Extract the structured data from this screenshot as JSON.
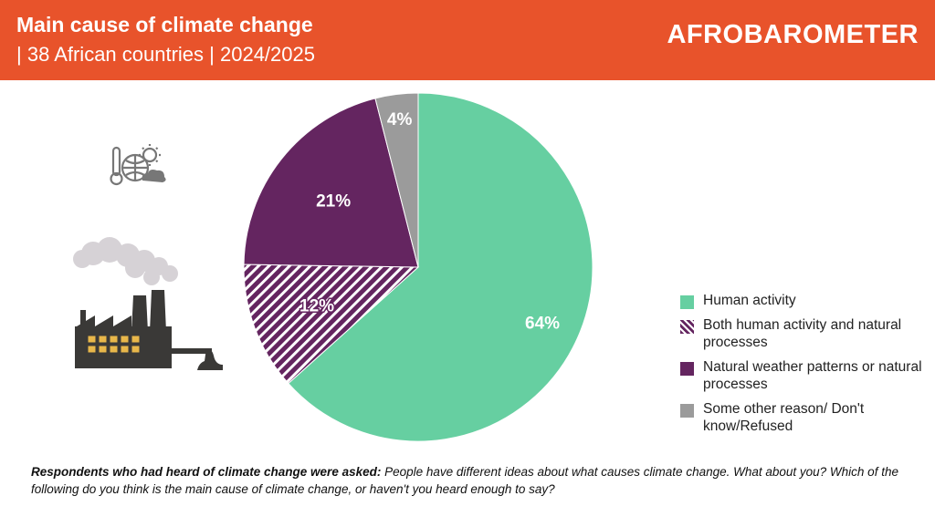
{
  "header": {
    "title": "Main cause of climate change",
    "subtitle": "| 38 African countries | 2024/2025",
    "brand": "AFROBAROMETER",
    "background": "#e8532b"
  },
  "chart_data": {
    "type": "pie",
    "title": "Main cause of climate change",
    "subtitle": "38 African countries | 2024/2025",
    "slices": [
      {
        "label": "Human activity",
        "value": 64,
        "display": "64%",
        "color": "#66cfa1",
        "pattern": "solid"
      },
      {
        "label": "Both human activity and natural processes",
        "value": 12,
        "display": "12%",
        "color": "#642560",
        "pattern": "hatched"
      },
      {
        "label": "Natural weather patterns or natural processes",
        "value": 21,
        "display": "21%",
        "color": "#642560",
        "pattern": "solid"
      },
      {
        "label": "Some other reason/ Don't know/Refused",
        "value": 4,
        "display": "4%",
        "color": "#9b9b9b",
        "pattern": "solid"
      }
    ],
    "start_angle": "12 o'clock, clockwise",
    "legend_position": "right"
  },
  "legend": [
    {
      "label": "Human activity"
    },
    {
      "label": "Both human activity and natural processes"
    },
    {
      "label": "Natural weather patterns or natural processes"
    },
    {
      "label": "Some other reason/ Don't know/Refused"
    }
  ],
  "footnote": {
    "lead": "Respondents who had heard of climate change were asked:",
    "text": " People have different ideas about what causes climate change. What about you? Which of the following do you think is the main cause of climate change, or haven't you heard enough to say?"
  },
  "icons": {
    "weather": "thermometer-globe-sun-icon",
    "factory": "factory-icon"
  }
}
